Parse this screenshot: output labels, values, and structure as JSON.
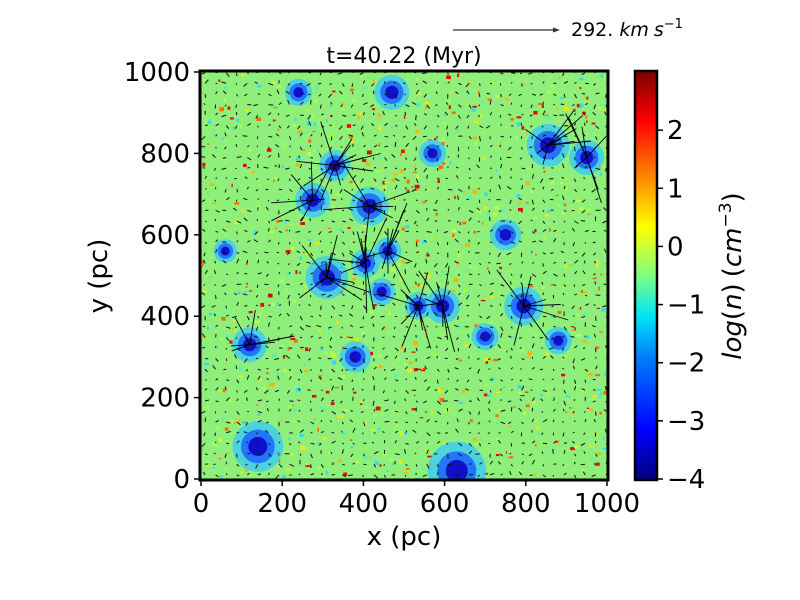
{
  "chart_data": {
    "type": "heatmap",
    "title": "t=40.22 (Myr)",
    "xlabel": "x (pc)",
    "ylabel": "y (pc)",
    "xlim": [
      0,
      1000
    ],
    "ylim": [
      0,
      1000
    ],
    "x_ticks": [
      "0",
      "200",
      "400",
      "600",
      "800",
      "1000"
    ],
    "y_ticks": [
      "0",
      "200",
      "400",
      "600",
      "800",
      "1000"
    ],
    "colorbar": {
      "label": "log(n) (cm^-3)",
      "range": [
        -4,
        3
      ],
      "ticks": [
        "−4",
        "−3",
        "−2",
        "−1",
        "0",
        "1",
        "2"
      ],
      "colormap": "jet"
    },
    "quiver_key": {
      "label": "292. km s^-1"
    },
    "field_description": "density field with velocity vectors",
    "low_density_bubbles": [
      {
        "x": 275,
        "y": 685,
        "r": 18
      },
      {
        "x": 310,
        "y": 495,
        "r": 22
      },
      {
        "x": 120,
        "y": 330,
        "r": 18
      },
      {
        "x": 405,
        "y": 530,
        "r": 15
      },
      {
        "x": 460,
        "y": 560,
        "r": 14
      },
      {
        "x": 415,
        "y": 670,
        "r": 20
      },
      {
        "x": 330,
        "y": 770,
        "r": 16
      },
      {
        "x": 535,
        "y": 425,
        "r": 14
      },
      {
        "x": 795,
        "y": 425,
        "r": 20
      },
      {
        "x": 855,
        "y": 820,
        "r": 22
      },
      {
        "x": 950,
        "y": 790,
        "r": 18
      },
      {
        "x": 595,
        "y": 425,
        "r": 18
      },
      {
        "x": 445,
        "y": 460,
        "r": 14
      },
      {
        "x": 380,
        "y": 300,
        "r": 16
      },
      {
        "x": 140,
        "y": 80,
        "r": 26
      },
      {
        "x": 630,
        "y": 20,
        "r": 30
      },
      {
        "x": 570,
        "y": 800,
        "r": 14
      },
      {
        "x": 470,
        "y": 950,
        "r": 18
      },
      {
        "x": 750,
        "y": 600,
        "r": 16
      },
      {
        "x": 880,
        "y": 340,
        "r": 14
      },
      {
        "x": 60,
        "y": 560,
        "r": 12
      },
      {
        "x": 700,
        "y": 350,
        "r": 14
      },
      {
        "x": 240,
        "y": 950,
        "r": 14
      }
    ]
  }
}
